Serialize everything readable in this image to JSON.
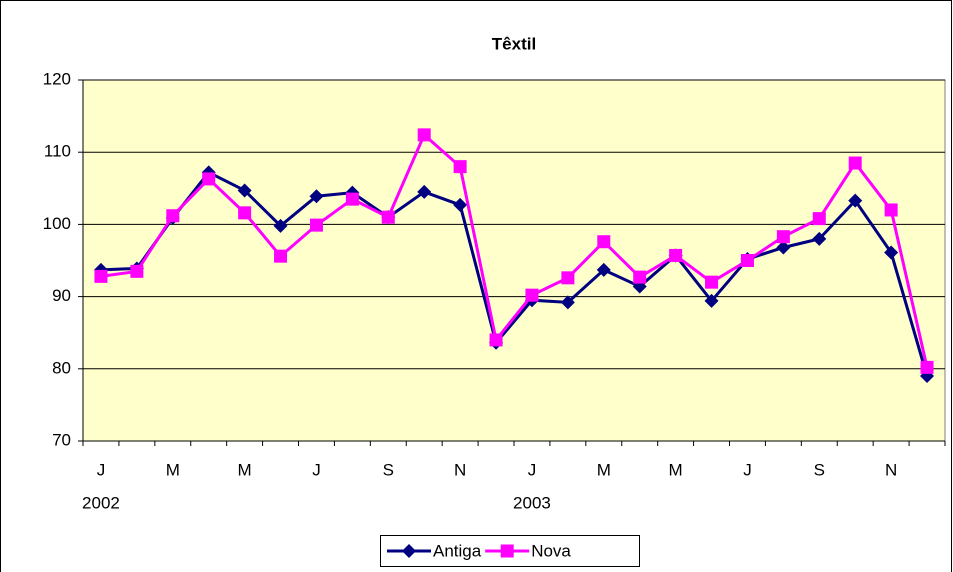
{
  "chart_data": {
    "type": "line",
    "title": "Têxtil",
    "categories": [
      "J",
      null,
      "M",
      null,
      "M",
      null,
      "J",
      null,
      "S",
      null,
      "N",
      null,
      "J",
      null,
      "M",
      null,
      "M",
      null,
      "J",
      null,
      "S",
      null,
      "N",
      null
    ],
    "years": [
      "2002",
      null,
      null,
      null,
      null,
      null,
      null,
      null,
      null,
      null,
      null,
      null,
      "2003",
      null,
      null,
      null,
      null,
      null,
      null,
      null,
      null,
      null,
      null,
      null
    ],
    "series": [
      {
        "name": "Antiga",
        "color": "#000080",
        "marker": "diamond",
        "values": [
          93.7,
          93.9,
          100.9,
          107.2,
          104.7,
          99.8,
          103.9,
          104.4,
          101.0,
          104.5,
          102.7,
          83.6,
          89.5,
          89.2,
          93.7,
          91.4,
          95.7,
          89.4,
          95.2,
          96.8,
          98.0,
          103.3,
          96.1,
          79.0
        ]
      },
      {
        "name": "Nova",
        "color": "#ff00ff",
        "marker": "square",
        "values": [
          92.8,
          93.5,
          101.2,
          106.3,
          101.6,
          95.6,
          99.9,
          103.5,
          101.0,
          112.4,
          108.0,
          84.0,
          90.2,
          92.6,
          97.6,
          92.7,
          95.7,
          92.0,
          95.0,
          98.3,
          100.8,
          108.5,
          102.0,
          80.2
        ]
      }
    ],
    "ylim": [
      70,
      120
    ],
    "yticks": [
      70,
      80,
      90,
      100,
      110,
      120
    ],
    "grid": true,
    "legend": "bottom",
    "plot_background": "#ffffcc"
  }
}
